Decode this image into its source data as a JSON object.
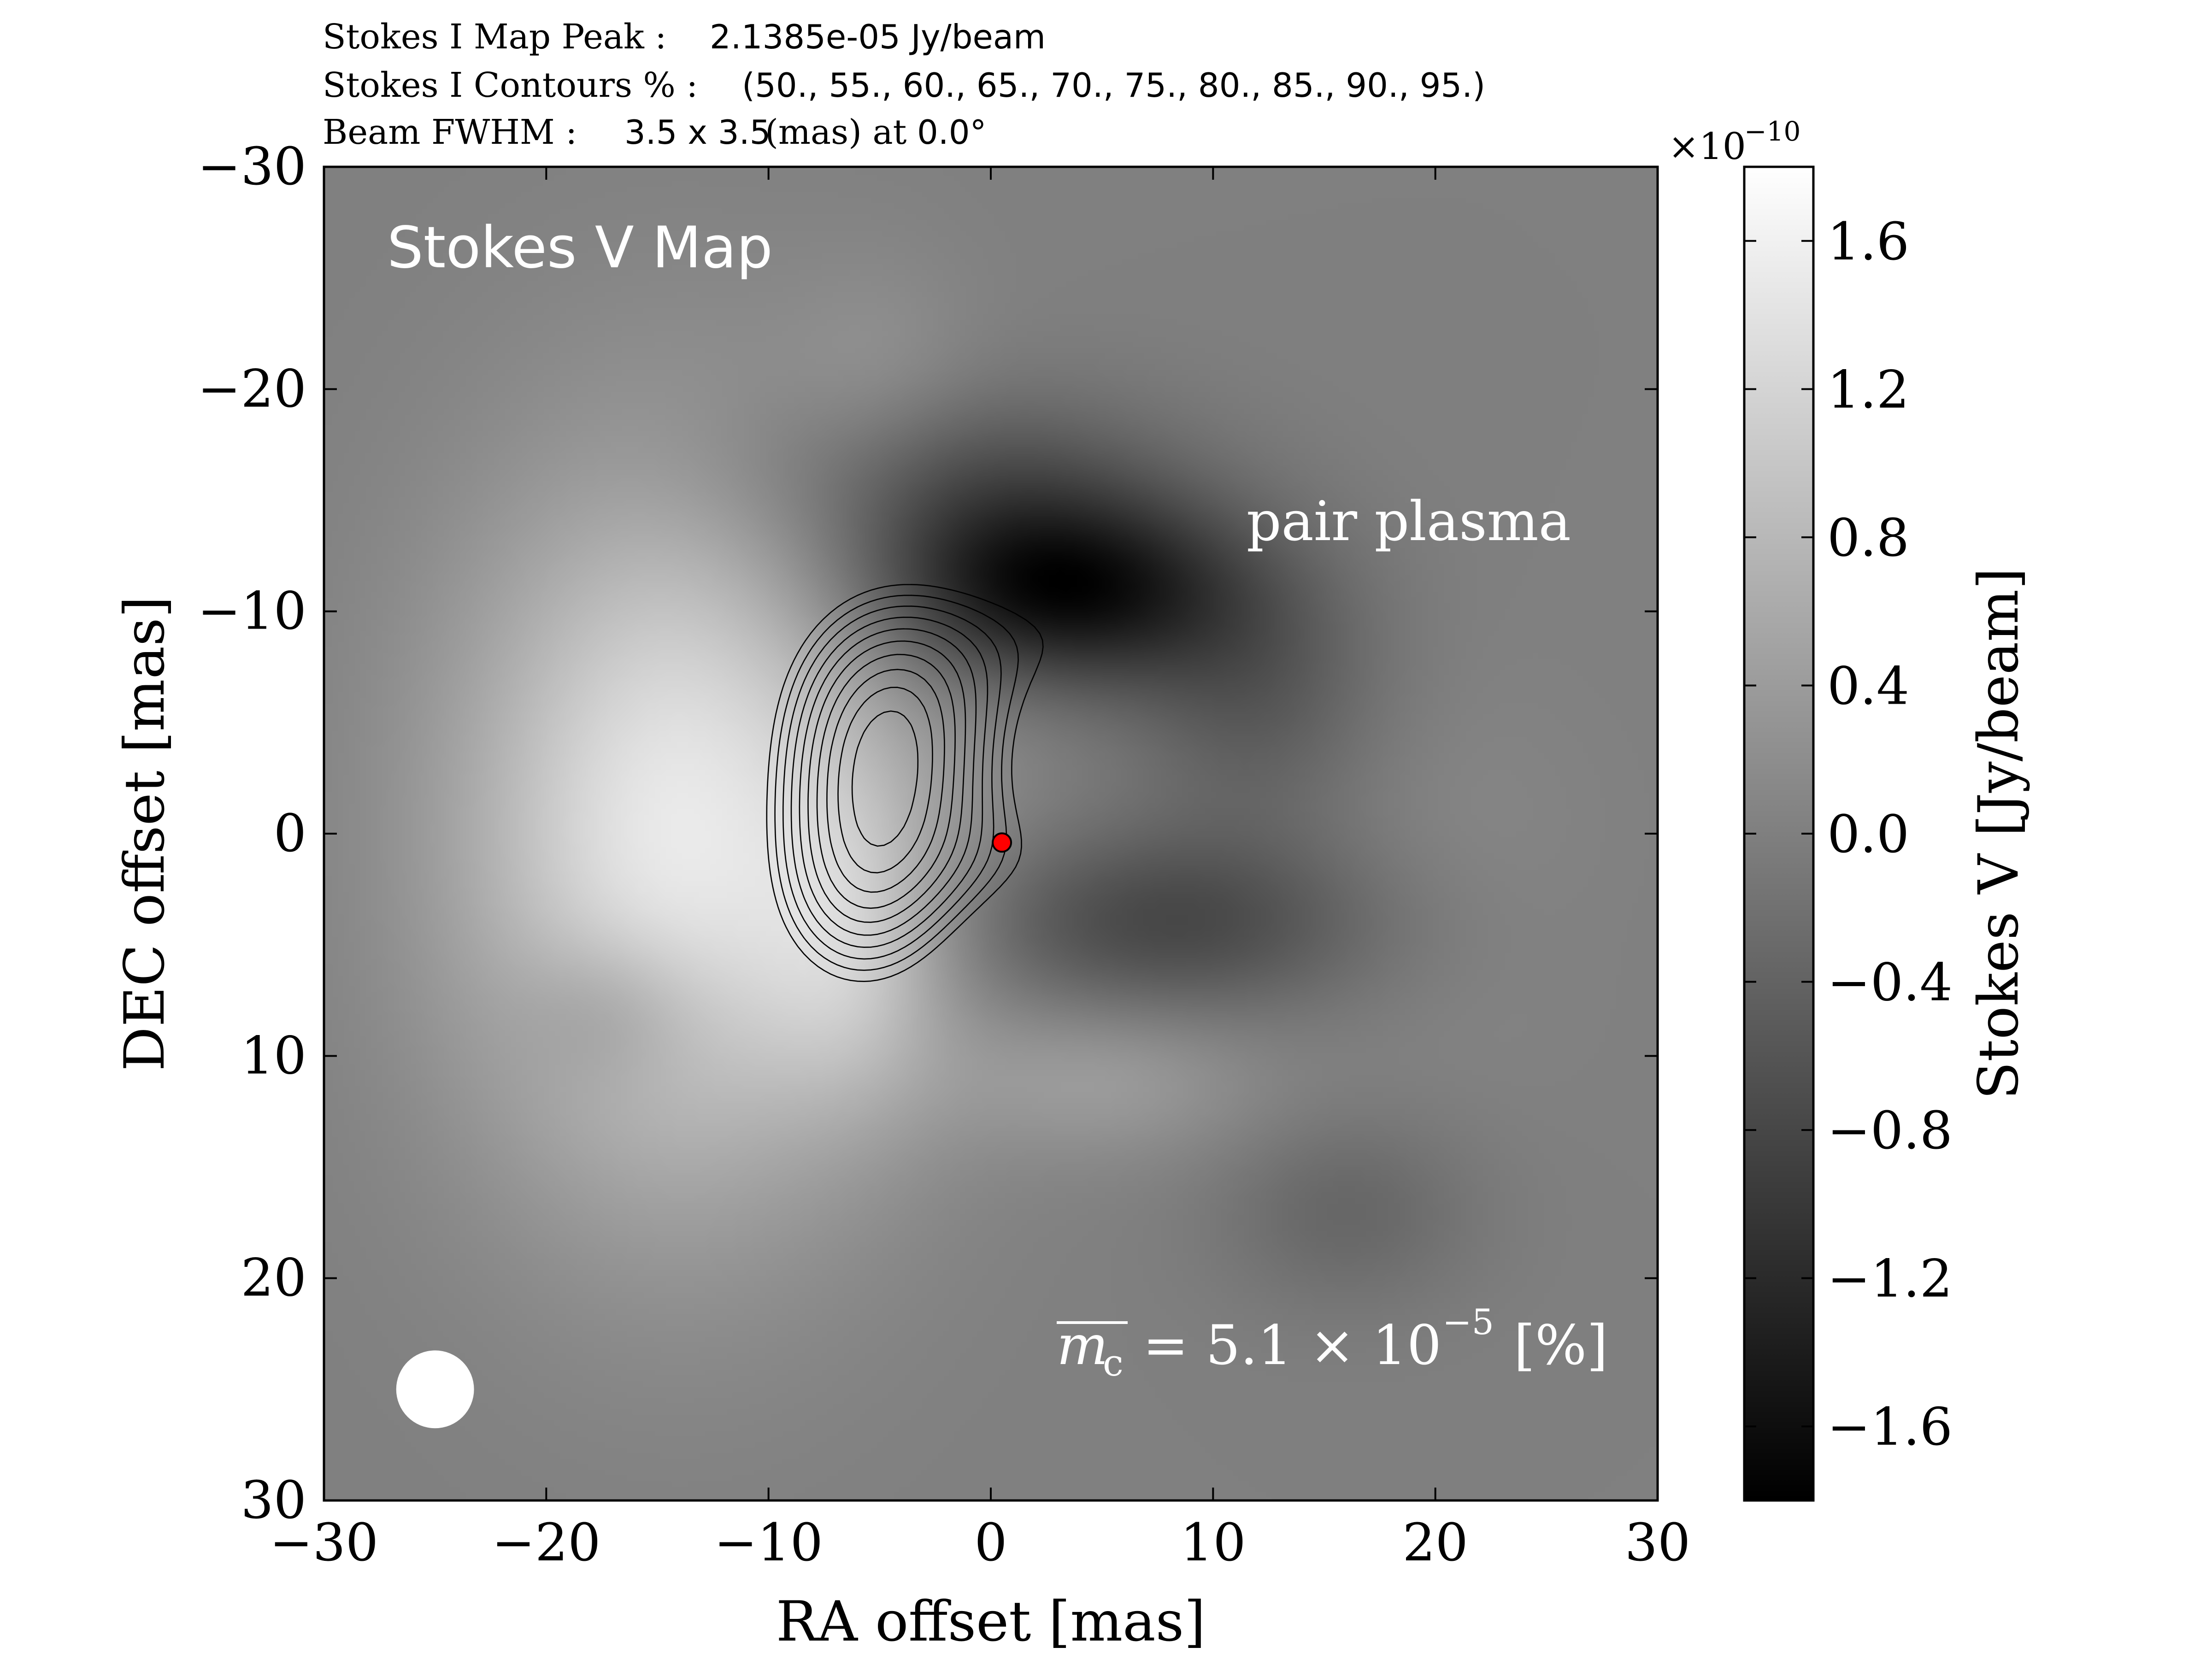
{
  "chart_data": {
    "type": "heatmap",
    "title_lines": {
      "peak_label": "Stokes I Map Peak :",
      "peak_value": "2.1385e-05 Jy/beam",
      "contours_label": "Stokes I Contours % :",
      "contours_value": "(50., 55., 60., 65., 70., 75., 80., 85., 90., 95.)",
      "beam_label": "Beam FWHM :",
      "beam_value": "3.5 x 3.5",
      "beam_unit": "(mas) at",
      "beam_angle": "0.0°"
    },
    "xlabel": "RA offset [mas]",
    "ylabel": "DEC offset [mas]",
    "xlim": [
      -30,
      30
    ],
    "ylim": [
      -30,
      30
    ],
    "y_inverted": true,
    "x_ticks": [
      "−30",
      "−20",
      "−10",
      "0",
      "10",
      "20",
      "30"
    ],
    "x_tick_values": [
      -30,
      -20,
      -10,
      0,
      10,
      20,
      30
    ],
    "y_ticks": [
      "−30",
      "−20",
      "−10",
      "0",
      "10",
      "20",
      "30"
    ],
    "y_tick_values": [
      -30,
      -20,
      -10,
      0,
      10,
      20,
      30
    ],
    "colorbar": {
      "label": "Stokes V [Jy/beam]",
      "exponent": "×10",
      "exponent_power": "−10",
      "range": [
        -1.8,
        1.8
      ],
      "ticks": [
        "1.6",
        "1.2",
        "0.8",
        "0.4",
        "0.0",
        "−0.4",
        "−0.8",
        "−1.2",
        "−1.6"
      ],
      "tick_values": [
        1.6,
        1.2,
        0.8,
        0.4,
        0.0,
        -0.4,
        -0.8,
        -1.2,
        -1.6
      ],
      "colormap": "gray"
    },
    "annotations": {
      "map_title": "Stokes V Map",
      "region_label": "pair plasma",
      "mc_label": "m",
      "mc_sub": "c",
      "mc_value": "=  5.1 × 10",
      "mc_exp": "−5",
      "mc_unit": "[%]"
    },
    "stokes_v_blobs": [
      {
        "x": -14,
        "y": 0,
        "sx": 7,
        "sy": 11,
        "amp": 1.5
      },
      {
        "x": -6,
        "y": 5,
        "sx": 3,
        "sy": 5,
        "amp": 0.6
      },
      {
        "x": 3,
        "y": -11,
        "sx": 6,
        "sy": 3,
        "amp": -1.7
      },
      {
        "x": -2,
        "y": -16,
        "sx": 7,
        "sy": 3,
        "amp": -0.6
      },
      {
        "x": 12,
        "y": -6,
        "sx": 4,
        "sy": 4,
        "amp": -0.5
      },
      {
        "x": 8,
        "y": 4,
        "sx": 7,
        "sy": 3,
        "amp": -0.8
      },
      {
        "x": -17,
        "y": 8,
        "sx": 3,
        "sy": 2.5,
        "amp": -0.4
      },
      {
        "x": 5,
        "y": 11,
        "sx": 5,
        "sy": 2.5,
        "amp": 0.4
      },
      {
        "x": 16,
        "y": 17,
        "sx": 4,
        "sy": 3,
        "amp": -0.35
      },
      {
        "x": -5,
        "y": -20,
        "sx": 3,
        "sy": 4,
        "amp": 0.2
      },
      {
        "x": 20,
        "y": 2,
        "sx": 5,
        "sy": 6,
        "amp": 0.12
      }
    ],
    "stokes_i_contours_percent": [
      50,
      55,
      60,
      65,
      70,
      75,
      80,
      85,
      90,
      95
    ],
    "stokes_i_components": [
      {
        "x": -4.5,
        "y": -5,
        "sx": 4.5,
        "sy": 5.5,
        "amp": 1.0
      },
      {
        "x": -6,
        "y": 3.5,
        "sx": 4.0,
        "sy": 4.5,
        "amp": 0.6
      },
      {
        "x": 5,
        "y": -9.5,
        "sx": 4.5,
        "sy": 3.0,
        "amp": 0.38
      },
      {
        "x": 10.5,
        "y": -5,
        "sx": 3.5,
        "sy": 3.2,
        "amp": 0.33
      },
      {
        "x": 4,
        "y": 1.5,
        "sx": 4.0,
        "sy": 2.5,
        "amp": 0.3
      }
    ],
    "core_marker": {
      "x": 0.5,
      "y": 0.4,
      "color": "#ff0000"
    },
    "beam": {
      "x": -25,
      "y": 25,
      "fwhm": 3.5,
      "color": "#ffffff"
    }
  }
}
